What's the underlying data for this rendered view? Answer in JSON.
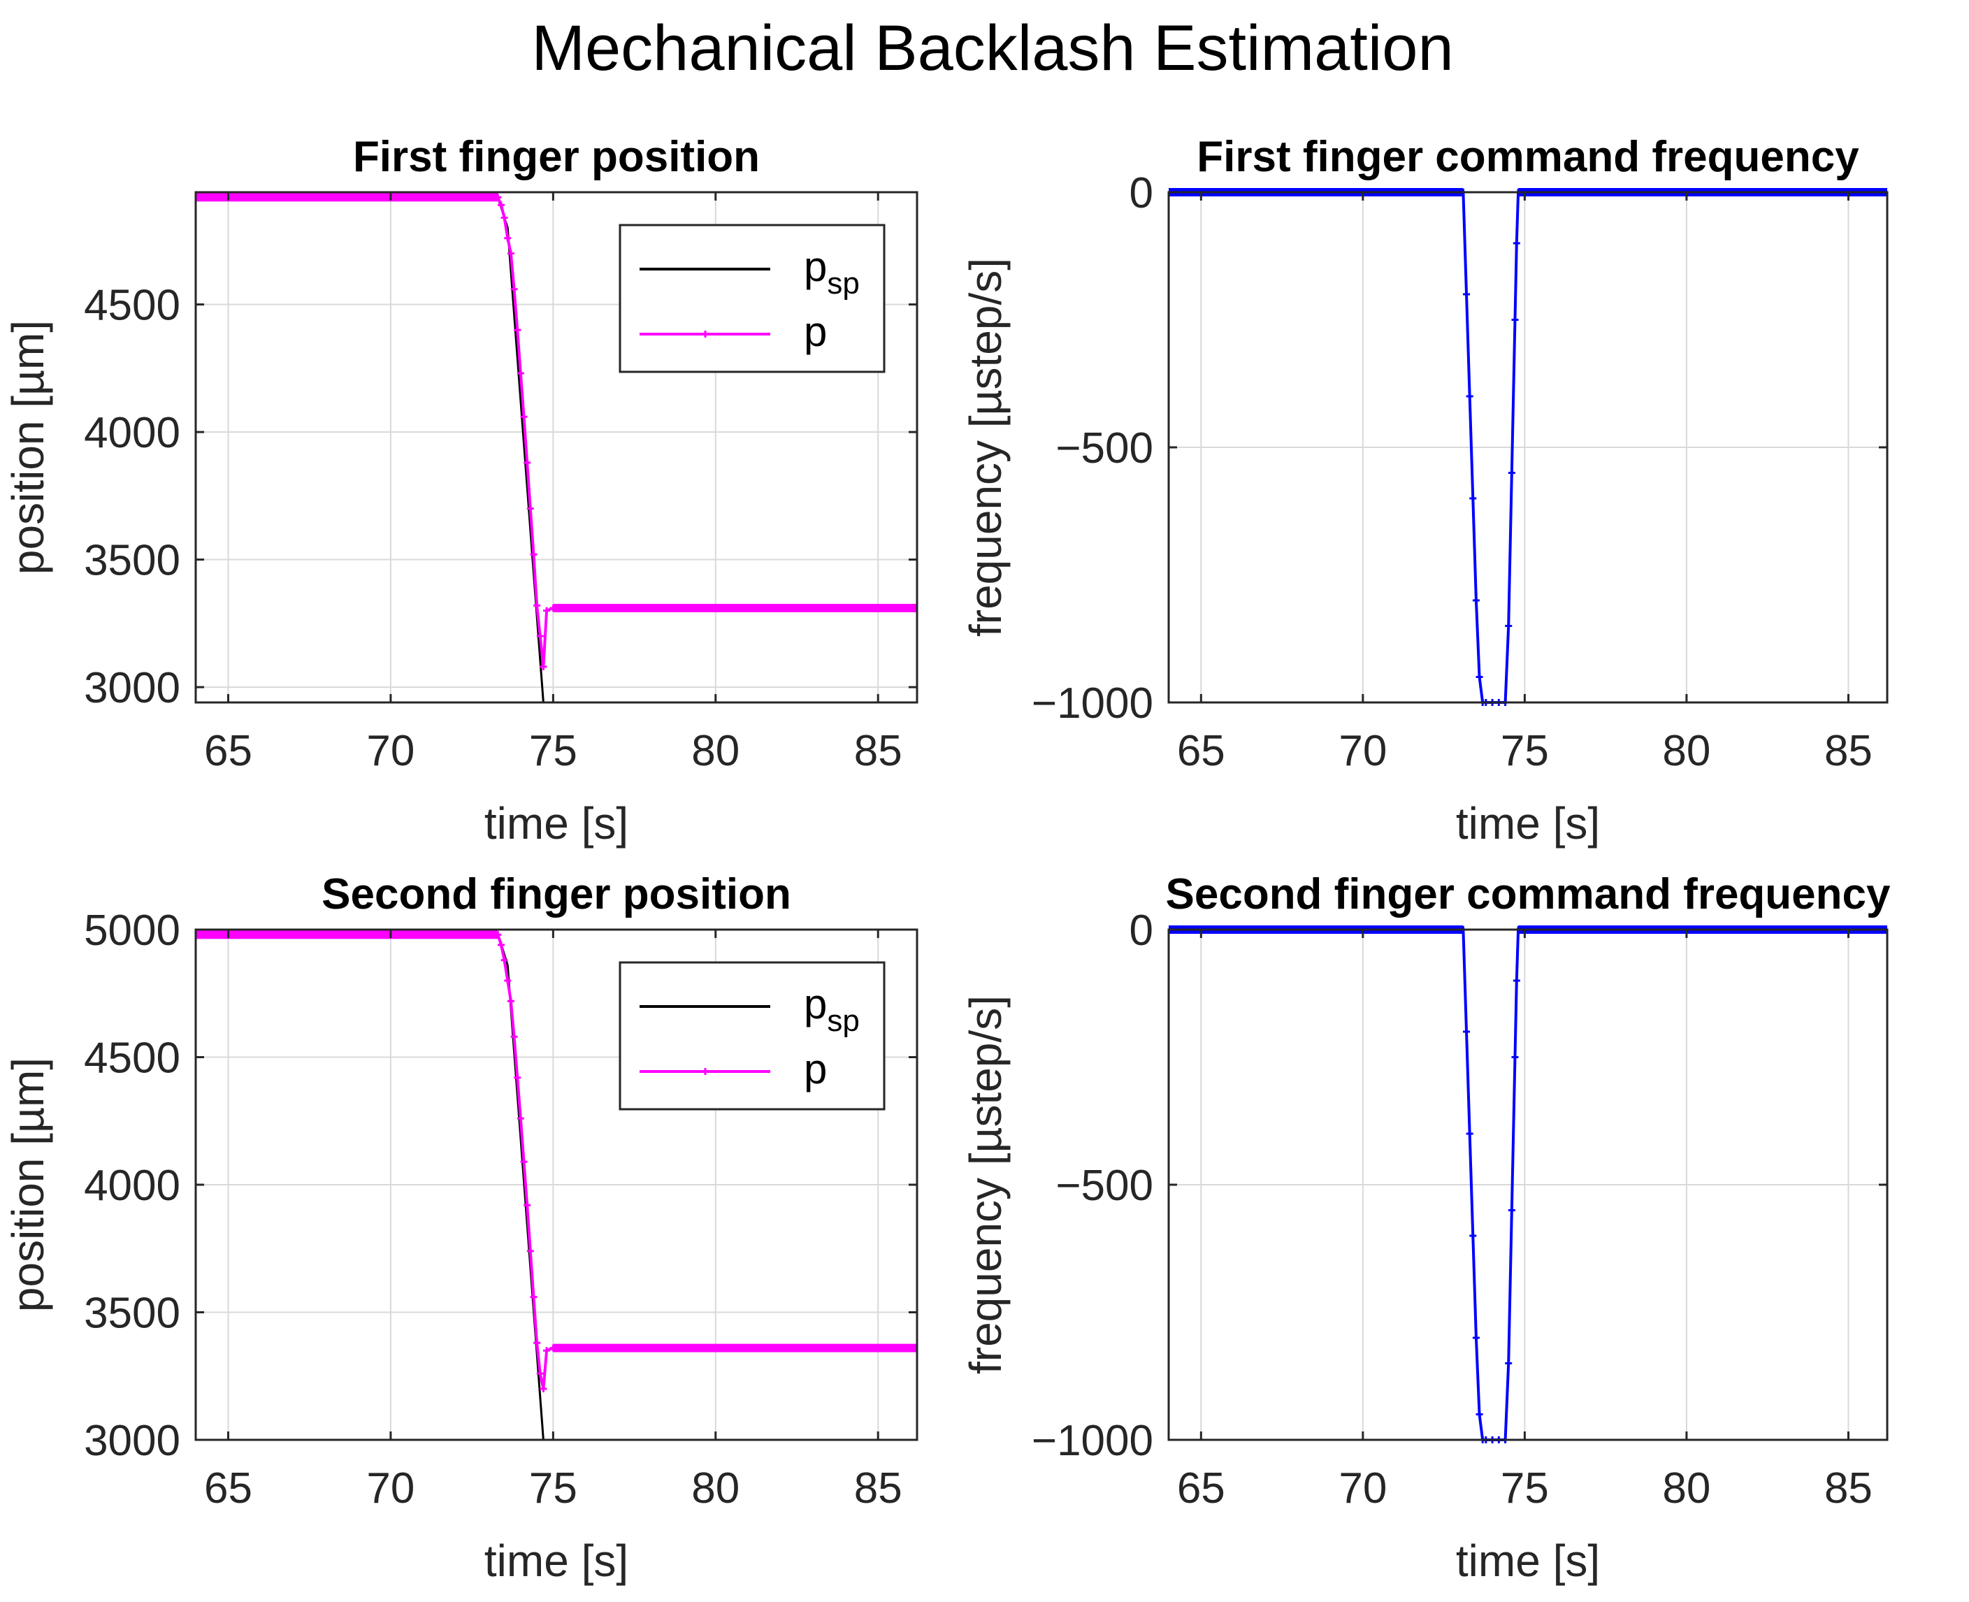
{
  "figure": {
    "title": "Mechanical Backlash Estimation"
  },
  "colors": {
    "setpoint": "#000000",
    "position": "#ff00ff",
    "frequency": "#0000ff",
    "grid": "#d9d9d9",
    "axes": "#262626"
  },
  "chart_data": [
    {
      "id": "p1",
      "type": "line",
      "title": "First finger position",
      "xlabel": "time [s]",
      "ylabel": "position [µm]",
      "xlim": [
        64,
        86.2
      ],
      "ylim": [
        2940,
        4940
      ],
      "xticks": [
        65,
        70,
        75,
        80,
        85
      ],
      "yticks": [
        3000,
        3500,
        4000,
        4500
      ],
      "legend": {
        "position": "top-right",
        "entries": [
          {
            "label": "p",
            "sub": "sp",
            "series": "psp"
          },
          {
            "label": "p",
            "sub": "",
            "series": "p"
          }
        ]
      },
      "series": [
        {
          "name": "psp",
          "marker": false,
          "x": [
            64,
            73.3,
            73.6,
            74.7,
            86.2
          ],
          "y": [
            4920,
            4920,
            4800,
            2940,
            2940
          ]
        },
        {
          "name": "p",
          "marker": true,
          "x": [
            64,
            73.3,
            73.4,
            73.5,
            73.6,
            73.7,
            73.8,
            73.9,
            74.0,
            74.1,
            74.2,
            74.3,
            74.4,
            74.5,
            74.6,
            74.7,
            74.8,
            75.0,
            86.2
          ],
          "y": [
            4920,
            4920,
            4890,
            4840,
            4760,
            4700,
            4560,
            4400,
            4230,
            4060,
            3880,
            3700,
            3520,
            3320,
            3200,
            3080,
            3300,
            3310,
            3310
          ]
        }
      ]
    },
    {
      "id": "f1",
      "type": "line",
      "title": "First finger command frequency",
      "xlabel": "time [s]",
      "ylabel": "frequency [µstep/s]",
      "xlim": [
        64,
        86.2
      ],
      "ylim": [
        -1000,
        0
      ],
      "xticks": [
        65,
        70,
        75,
        80,
        85
      ],
      "yticks": [
        -1000,
        -500,
        0
      ],
      "series": [
        {
          "name": "frequency",
          "marker": true,
          "x": [
            64,
            73.1,
            73.2,
            73.3,
            73.4,
            73.5,
            73.6,
            73.7,
            73.8,
            74.0,
            74.2,
            74.4,
            74.5,
            74.6,
            74.7,
            74.75,
            74.8,
            86.2
          ],
          "y": [
            0,
            0,
            -200,
            -400,
            -600,
            -800,
            -950,
            -1000,
            -1000,
            -1000,
            -1000,
            -1000,
            -850,
            -550,
            -250,
            -100,
            0,
            0
          ]
        }
      ]
    },
    {
      "id": "p2",
      "type": "line",
      "title": "Second finger position",
      "xlabel": "time [s]",
      "ylabel": "position [µm]",
      "xlim": [
        64,
        86.2
      ],
      "ylim": [
        3000,
        5000
      ],
      "xticks": [
        65,
        70,
        75,
        80,
        85
      ],
      "yticks": [
        3000,
        3500,
        4000,
        4500,
        5000
      ],
      "legend": {
        "position": "top-right",
        "entries": [
          {
            "label": "p",
            "sub": "sp",
            "series": "psp"
          },
          {
            "label": "p",
            "sub": "",
            "series": "p"
          }
        ]
      },
      "series": [
        {
          "name": "psp",
          "marker": false,
          "x": [
            64,
            73.3,
            73.6,
            74.7,
            86.2
          ],
          "y": [
            4985,
            4985,
            4860,
            3000,
            3000
          ]
        },
        {
          "name": "p",
          "marker": true,
          "x": [
            64,
            73.3,
            73.4,
            73.5,
            73.6,
            73.7,
            73.8,
            73.9,
            74.0,
            74.1,
            74.2,
            74.3,
            74.4,
            74.5,
            74.6,
            74.7,
            74.8,
            75.0,
            86.2
          ],
          "y": [
            4980,
            4980,
            4940,
            4880,
            4800,
            4720,
            4580,
            4420,
            4260,
            4090,
            3920,
            3740,
            3560,
            3380,
            3260,
            3200,
            3350,
            3360,
            3360
          ]
        }
      ]
    },
    {
      "id": "f2",
      "type": "line",
      "title": "Second finger command frequency",
      "xlabel": "time [s]",
      "ylabel": "frequency [µstep/s]",
      "xlim": [
        64,
        86.2
      ],
      "ylim": [
        -1000,
        0
      ],
      "xticks": [
        65,
        70,
        75,
        80,
        85
      ],
      "yticks": [
        -1000,
        -500,
        0
      ],
      "series": [
        {
          "name": "frequency",
          "marker": true,
          "x": [
            64,
            73.1,
            73.2,
            73.3,
            73.4,
            73.5,
            73.6,
            73.7,
            73.8,
            74.0,
            74.2,
            74.4,
            74.5,
            74.6,
            74.7,
            74.75,
            74.8,
            86.2
          ],
          "y": [
            0,
            0,
            -200,
            -400,
            -600,
            -800,
            -950,
            -1000,
            -1000,
            -1000,
            -1000,
            -1000,
            -850,
            -550,
            -250,
            -100,
            0,
            0
          ]
        }
      ]
    }
  ]
}
